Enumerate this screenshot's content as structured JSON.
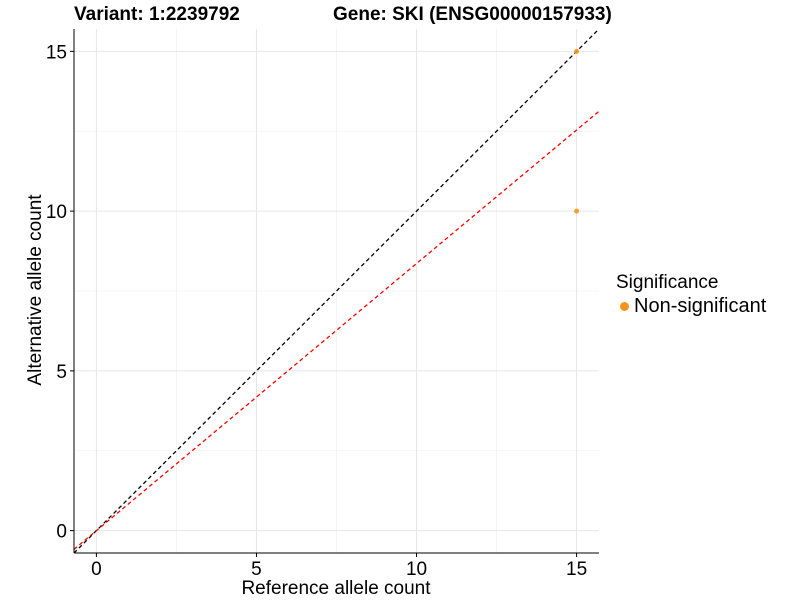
{
  "chart_data": {
    "type": "scatter",
    "title_left": "Variant: 1:2239792",
    "title_right": "Gene: SKI (ENSG00000157933)",
    "xlabel": "Reference allele count",
    "ylabel": "Alternative allele count",
    "xlim": [
      -0.7,
      15.7
    ],
    "ylim": [
      -0.7,
      15.7
    ],
    "x_ticks": [
      0,
      5,
      10,
      15
    ],
    "y_ticks": [
      0,
      5,
      10,
      15
    ],
    "x_tick_labels": [
      "0",
      "5",
      "10",
      "15"
    ],
    "y_tick_labels": [
      "0",
      "5",
      "10",
      "15"
    ],
    "grid": true,
    "points": [
      {
        "x": 15,
        "y": 15,
        "group": "Non-significant"
      },
      {
        "x": 15,
        "y": 10,
        "group": "Non-significant"
      }
    ],
    "reference_lines": [
      {
        "name": "identity",
        "slope": 1.0,
        "intercept": 0,
        "color": "#000000",
        "style": "dashed"
      },
      {
        "name": "expected-ratio",
        "slope": 0.836,
        "intercept": 0,
        "color": "#ff0000",
        "style": "dashed"
      }
    ],
    "legend": {
      "title": "Significance",
      "position": "right",
      "entries": [
        {
          "label": "Non-significant",
          "color": "#f7941d"
        }
      ]
    }
  }
}
